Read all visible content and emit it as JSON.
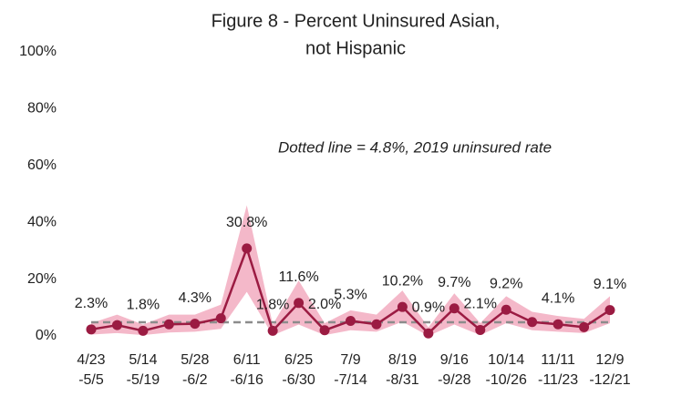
{
  "chart_data": {
    "type": "line",
    "title": [
      "Figure 8 - Percent Uninsured Asian,",
      "not Hispanic"
    ],
    "annotation": "Dotted line = 4.8%, 2019 uninsured rate",
    "reference_line": {
      "value": 4.8,
      "color": "#8c8c8c"
    },
    "categories": [
      [
        "4/23",
        "-5/5"
      ],
      null,
      [
        "5/14",
        "-5/19"
      ],
      null,
      [
        "5/28",
        "-6/2"
      ],
      null,
      [
        "6/11",
        "-6/16"
      ],
      null,
      [
        "6/25",
        "-6/30"
      ],
      null,
      [
        "7/9",
        "-7/14"
      ],
      null,
      [
        "8/19",
        "-8/31"
      ],
      null,
      [
        "9/16",
        "-9/28"
      ],
      null,
      [
        "10/14",
        "-10/26"
      ],
      null,
      [
        "11/11",
        "-11/23"
      ],
      null,
      [
        "12/9",
        "-12/21"
      ]
    ],
    "series": [
      {
        "name": "Percent uninsured",
        "color": "#9b1b42",
        "band_color": "#f4b8c9",
        "values": [
          2.3,
          3.8,
          1.8,
          4.1,
          4.3,
          6.2,
          30.8,
          1.8,
          11.6,
          2.0,
          5.3,
          4.1,
          10.2,
          0.9,
          9.7,
          2.1,
          9.2,
          4.9,
          4.1,
          3.1,
          9.1
        ],
        "value_labels": [
          "2.3%",
          null,
          "1.8%",
          null,
          "4.3%",
          null,
          "30.8%",
          "1.8%",
          "11.6%",
          "2.0%",
          "5.3%",
          null,
          "10.2%",
          "0.9%",
          "9.7%",
          "2.1%",
          "9.2%",
          null,
          "4.1%",
          null,
          "9.1%"
        ],
        "ci_low": [
          0.5,
          1.0,
          0.3,
          1.2,
          1.5,
          2.5,
          15.5,
          0.2,
          4.0,
          0.3,
          2.0,
          1.5,
          5.0,
          0.0,
          4.0,
          0.3,
          4.5,
          2.0,
          1.5,
          1.0,
          4.5
        ],
        "ci_high": [
          4.5,
          7.5,
          4.0,
          7.5,
          7.5,
          11.0,
          46.0,
          4.0,
          19.5,
          4.5,
          9.0,
          7.5,
          16.0,
          3.0,
          15.0,
          4.5,
          14.0,
          8.5,
          7.0,
          6.0,
          14.0
        ]
      }
    ],
    "ylim": [
      0,
      100
    ],
    "yticks": [
      {
        "value": 0,
        "label": "0%"
      },
      {
        "value": 20,
        "label": "20%"
      },
      {
        "value": 40,
        "label": "40%"
      },
      {
        "value": 60,
        "label": "60%"
      },
      {
        "value": 80,
        "label": "80%"
      },
      {
        "value": 100,
        "label": "100%"
      }
    ]
  }
}
